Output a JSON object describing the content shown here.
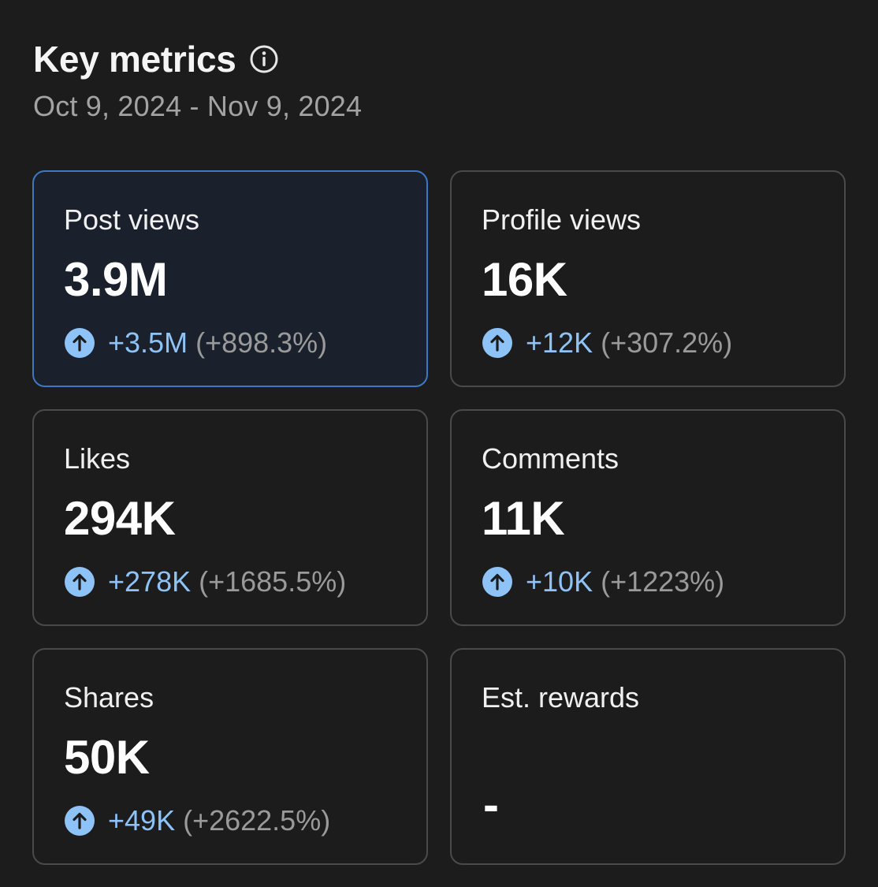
{
  "header": {
    "title": "Key metrics",
    "date_range": "Oct 9, 2024 - Nov 9, 2024"
  },
  "icons": {
    "info": "info-circle-icon",
    "trend": "arrow-up-circle-icon"
  },
  "colors": {
    "background": "#1c1c1c",
    "accent": "#8ec3f8",
    "selected_border": "#3d78c2"
  },
  "metrics": [
    {
      "label": "Post views",
      "value": "3.9M",
      "change": "+3.5M",
      "percent": "(+898.3%)",
      "selected": true
    },
    {
      "label": "Profile views",
      "value": "16K",
      "change": "+12K",
      "percent": "(+307.2%)"
    },
    {
      "label": "Likes",
      "value": "294K",
      "change": "+278K",
      "percent": "(+1685.5%)"
    },
    {
      "label": "Comments",
      "value": "11K",
      "change": "+10K",
      "percent": "(+1223%)"
    },
    {
      "label": "Shares",
      "value": "50K",
      "change": "+49K",
      "percent": "(+2622.5%)"
    },
    {
      "label": "Est. rewards",
      "value": "-"
    }
  ]
}
